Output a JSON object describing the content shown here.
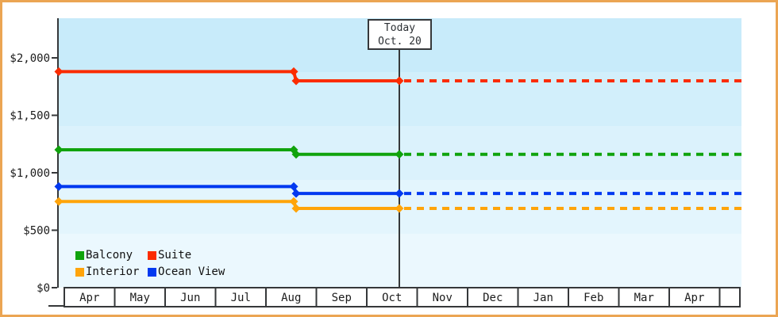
{
  "today_annotation": {
    "line1": "Today",
    "line2": "Oct. 20"
  },
  "colors": {
    "frame_border": "#eba553",
    "axis": "#36383a",
    "plot_bg_top": "#c8ebfa",
    "plot_bg_bottom": "#ebf8fe",
    "text": "#1c1c1c"
  },
  "chart_data": {
    "type": "line",
    "title": "",
    "x_axis_months": [
      "Apr",
      "May",
      "Jun",
      "Jul",
      "Aug",
      "Sep",
      "Oct",
      "Nov",
      "Dec",
      "Jan",
      "Feb",
      "Mar",
      "Apr"
    ],
    "y_tick_labels": [
      {
        "label": "$0",
        "value": 0
      },
      {
        "label": "$500",
        "value": 500
      },
      {
        "label": "$1,000",
        "value": 1000
      },
      {
        "label": "$1,500",
        "value": 1500
      },
      {
        "label": "$2,000",
        "value": 2000
      }
    ],
    "ylim": [
      0,
      2000
    ],
    "today": "Oct. 20",
    "series": [
      {
        "name": "Balcony",
        "color": "#10a30c",
        "initial_price": 1200,
        "current_price": 1160
      },
      {
        "name": "Suite",
        "color": "#fb2c00",
        "initial_price": 1880,
        "current_price": 1800
      },
      {
        "name": "Interior",
        "color": "#ffa40a",
        "initial_price": 750,
        "current_price": 690
      },
      {
        "name": "Ocean View",
        "color": "#0239f0",
        "initial_price": 880,
        "current_price": 820
      }
    ],
    "price_drop_location": "mid-Aug",
    "solid_segment": "Apr through Oct 20 (today marker)",
    "dashed_segment": "flat projection after Oct 20 to right edge",
    "legend_position": "bottom-left inside plot",
    "grid": false
  }
}
